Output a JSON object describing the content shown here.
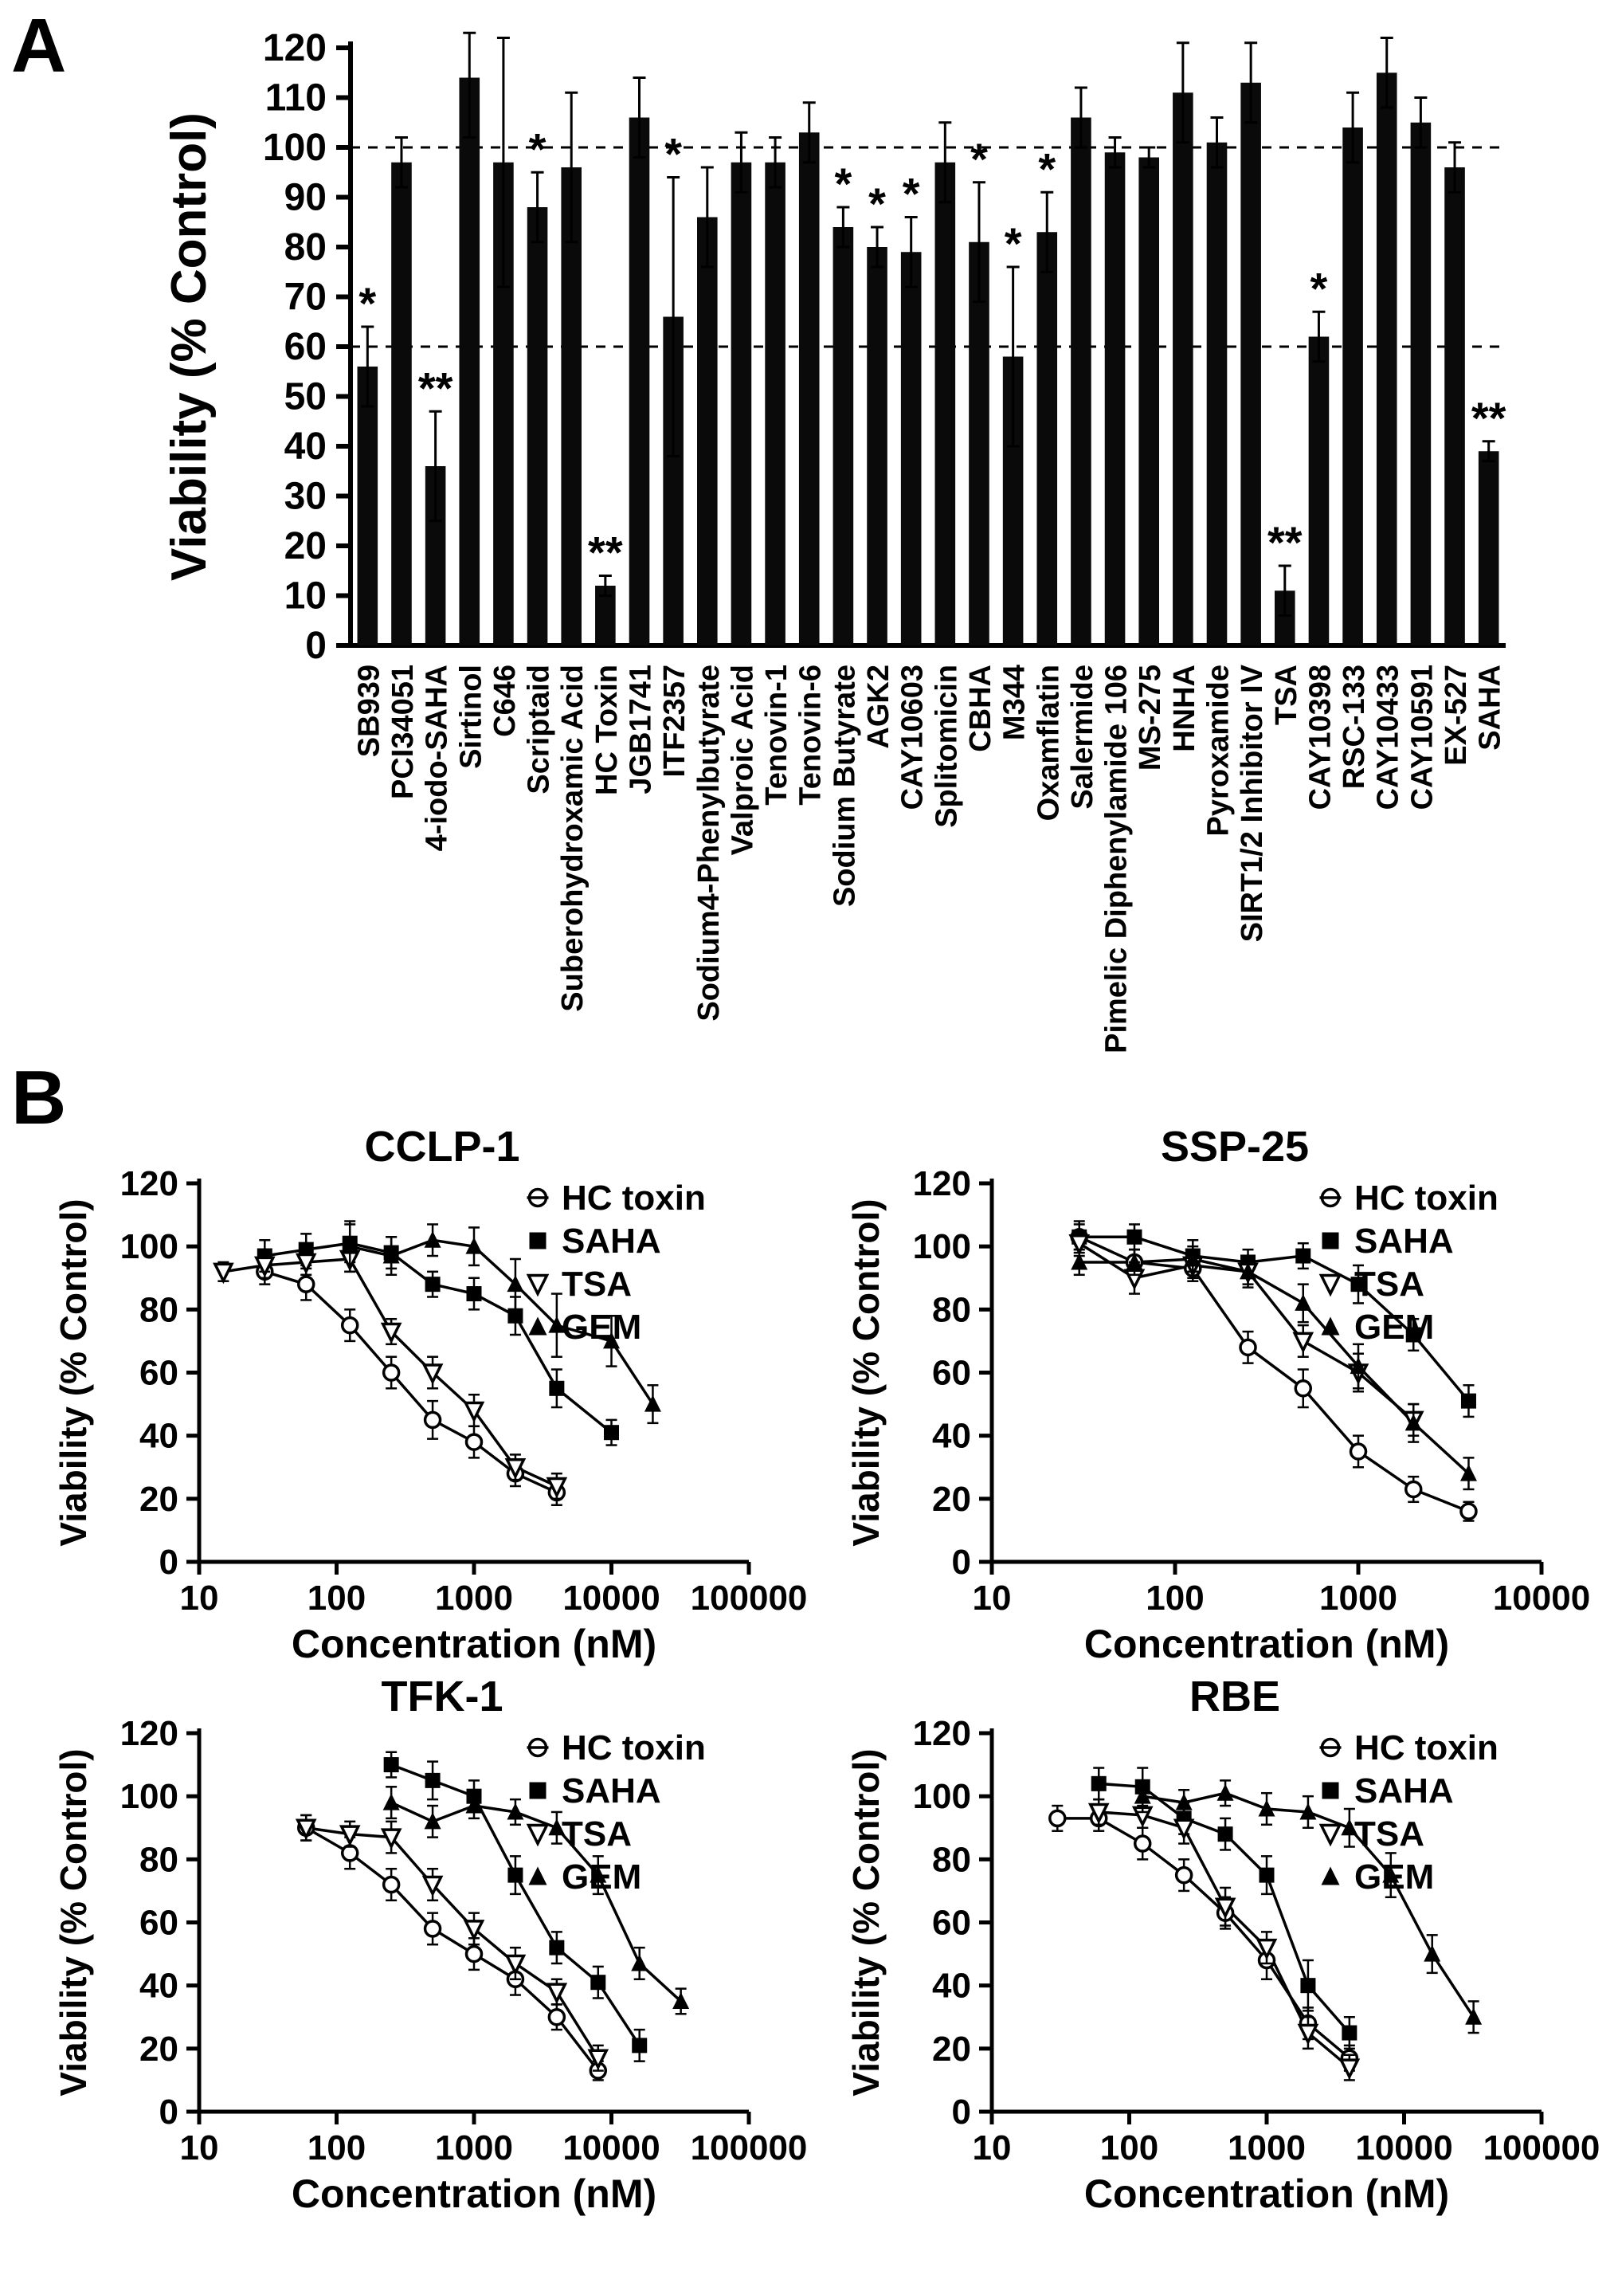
{
  "figure": {
    "panel_a": "A",
    "panel_b": "B"
  },
  "chart_data": [
    {
      "id": "panel-A",
      "type": "bar",
      "title": "",
      "xlabel": "",
      "ylabel": "Viability (% Control)",
      "ylim": [
        0,
        120
      ],
      "ytick_step": 10,
      "reference_lines": [
        100,
        60
      ],
      "bar_color": "#0a0a0a",
      "categories": [
        "SB939",
        "PCI34051",
        "4-iodo-SAHA",
        "Sirtinol",
        "C646",
        "Scriptaid",
        "Suberohydroxamic Acid",
        "HC Toxin",
        "JGB1741",
        "ITF2357",
        "Sodium4-Phenylbutyrate",
        "Valproic Acid",
        "Tenovin-1",
        "Tenovin-6",
        "Sodium Butyrate",
        "AGK2",
        "CAY10603",
        "Splitomicin",
        "CBHA",
        "M344",
        "Oxamflatin",
        "Salermide",
        "Pimelic Diphenylamide 106",
        "MS-275",
        "HNHA",
        "Pyroxamide",
        "SIRT1/2 Inhibitor IV",
        "TSA",
        "CAY10398",
        "RSC-133",
        "CAY10433",
        "CAY10591",
        "EX-527",
        "SAHA"
      ],
      "values": [
        56,
        97,
        36,
        114,
        97,
        88,
        96,
        12,
        106,
        66,
        86,
        97,
        97,
        103,
        84,
        80,
        79,
        97,
        81,
        58,
        83,
        106,
        99,
        98,
        111,
        101,
        113,
        11,
        62,
        104,
        115,
        105,
        96,
        39
      ],
      "errors": [
        8,
        5,
        11,
        12,
        25,
        7,
        15,
        2,
        8,
        28,
        10,
        6,
        5,
        6,
        4,
        4,
        7,
        8,
        12,
        18,
        8,
        6,
        3,
        2,
        10,
        5,
        8,
        5,
        5,
        7,
        7,
        5,
        5,
        2
      ],
      "significance": [
        "*",
        "",
        "**",
        "",
        "",
        "*",
        "",
        "**",
        "",
        "*",
        "",
        "",
        "",
        "",
        "*",
        "*",
        "*",
        "",
        "*",
        "*",
        "*",
        "",
        "",
        "",
        "",
        "",
        "",
        "**",
        "*",
        "",
        "",
        "",
        "",
        "**"
      ]
    },
    {
      "id": "panel-B-1",
      "type": "line",
      "title": "CCLP-1",
      "xlabel": "Concentration (nM)",
      "ylabel": "Viability (% Control)",
      "xscale": "log",
      "xlim": [
        10,
        100000
      ],
      "xticks": [
        10,
        100,
        1000,
        10000,
        100000
      ],
      "ylim": [
        0,
        120
      ],
      "yticks": [
        0,
        20,
        40,
        60,
        80,
        100,
        120
      ],
      "legend_position": "top-right",
      "series": [
        {
          "name": "HC toxin",
          "marker": "circle-open",
          "x": [
            30,
            60,
            125,
            250,
            500,
            1000,
            2000,
            4000
          ],
          "y": [
            92,
            88,
            75,
            60,
            45,
            38,
            28,
            22
          ],
          "err": [
            4,
            5,
            5,
            5,
            6,
            5,
            4,
            4
          ]
        },
        {
          "name": "SAHA",
          "marker": "square-filled",
          "x": [
            30,
            60,
            125,
            250,
            500,
            1000,
            2000,
            4000,
            10000
          ],
          "y": [
            97,
            99,
            101,
            98,
            88,
            85,
            78,
            55,
            41
          ],
          "err": [
            5,
            5,
            6,
            5,
            4,
            5,
            6,
            6,
            4
          ]
        },
        {
          "name": "TSA",
          "marker": "triangle-down-open",
          "x": [
            15,
            30,
            60,
            125,
            250,
            500,
            1000,
            2000,
            4000
          ],
          "y": [
            92,
            94,
            95,
            96,
            73,
            60,
            48,
            30,
            24
          ],
          "err": [
            3,
            4,
            4,
            4,
            4,
            5,
            5,
            4,
            4
          ]
        },
        {
          "name": "GEM",
          "marker": "triangle-up-filled",
          "x": [
            125,
            250,
            500,
            1000,
            2000,
            4000,
            10000,
            20000
          ],
          "y": [
            100,
            97,
            102,
            100,
            88,
            75,
            70,
            50
          ],
          "err": [
            8,
            6,
            5,
            6,
            8,
            10,
            8,
            6
          ]
        }
      ]
    },
    {
      "id": "panel-B-2",
      "type": "line",
      "title": "SSP-25",
      "xlabel": "Concentration (nM)",
      "ylabel": "Viability (% Control)",
      "xscale": "log",
      "xlim": [
        10,
        10000
      ],
      "xticks": [
        10,
        100,
        1000,
        10000
      ],
      "ylim": [
        0,
        120
      ],
      "yticks": [
        0,
        20,
        40,
        60,
        80,
        100,
        120
      ],
      "legend_position": "top-right",
      "series": [
        {
          "name": "HC toxin",
          "marker": "circle-open",
          "x": [
            30,
            60,
            125,
            250,
            500,
            1000,
            2000,
            4000
          ],
          "y": [
            103,
            95,
            93,
            68,
            55,
            35,
            23,
            16
          ],
          "err": [
            5,
            4,
            4,
            5,
            6,
            5,
            4,
            3
          ]
        },
        {
          "name": "SAHA",
          "marker": "square-filled",
          "x": [
            30,
            60,
            125,
            250,
            500,
            1000,
            2000,
            4000
          ],
          "y": [
            103,
            103,
            97,
            95,
            97,
            88,
            72,
            51
          ],
          "err": [
            4,
            4,
            5,
            4,
            4,
            6,
            5,
            5
          ]
        },
        {
          "name": "TSA",
          "marker": "triangle-down-open",
          "x": [
            30,
            60,
            125,
            250,
            500,
            1000,
            2000
          ],
          "y": [
            101,
            90,
            94,
            92,
            70,
            60,
            45
          ],
          "err": [
            4,
            5,
            4,
            4,
            5,
            6,
            5
          ]
        },
        {
          "name": "GEM",
          "marker": "triangle-up-filled",
          "x": [
            30,
            60,
            125,
            250,
            500,
            1000,
            2000,
            4000
          ],
          "y": [
            95,
            95,
            96,
            92,
            82,
            62,
            44,
            28
          ],
          "err": [
            4,
            4,
            4,
            5,
            6,
            7,
            6,
            5
          ]
        }
      ]
    },
    {
      "id": "panel-B-3",
      "type": "line",
      "title": "TFK-1",
      "xlabel": "Concentration (nM)",
      "ylabel": "Viability (% Control)",
      "xscale": "log",
      "xlim": [
        10,
        100000
      ],
      "xticks": [
        10,
        100,
        1000,
        10000,
        100000
      ],
      "ylim": [
        0,
        120
      ],
      "yticks": [
        0,
        20,
        40,
        60,
        80,
        100,
        120
      ],
      "legend_position": "top-right",
      "series": [
        {
          "name": "HC toxin",
          "marker": "circle-open",
          "x": [
            60,
            125,
            250,
            500,
            1000,
            2000,
            4000,
            8000
          ],
          "y": [
            90,
            82,
            72,
            58,
            50,
            42,
            30,
            13
          ],
          "err": [
            4,
            5,
            5,
            5,
            5,
            5,
            4,
            3
          ]
        },
        {
          "name": "SAHA",
          "marker": "square-filled",
          "x": [
            250,
            500,
            1000,
            2000,
            4000,
            8000,
            16000
          ],
          "y": [
            110,
            105,
            100,
            75,
            52,
            41,
            21
          ],
          "err": [
            4,
            6,
            5,
            6,
            5,
            5,
            5
          ]
        },
        {
          "name": "TSA",
          "marker": "triangle-down-open",
          "x": [
            60,
            125,
            250,
            500,
            1000,
            2000,
            4000,
            8000
          ],
          "y": [
            90,
            88,
            87,
            72,
            58,
            47,
            38,
            17
          ],
          "err": [
            4,
            4,
            5,
            5,
            5,
            5,
            4,
            4
          ]
        },
        {
          "name": "GEM",
          "marker": "triangle-up-filled",
          "x": [
            250,
            500,
            1000,
            2000,
            4000,
            8000,
            16000,
            32000
          ],
          "y": [
            98,
            92,
            97,
            95,
            90,
            75,
            47,
            35
          ],
          "err": [
            5,
            5,
            4,
            4,
            5,
            6,
            5,
            4
          ]
        }
      ]
    },
    {
      "id": "panel-B-4",
      "type": "line",
      "title": "RBE",
      "xlabel": "Concentration (nM)",
      "ylabel": "Viability (% Control)",
      "xscale": "log",
      "xlim": [
        10,
        100000
      ],
      "xticks": [
        10,
        100,
        1000,
        10000,
        100000
      ],
      "ylim": [
        0,
        120
      ],
      "yticks": [
        0,
        20,
        40,
        60,
        80,
        100,
        120
      ],
      "legend_position": "top-right",
      "series": [
        {
          "name": "HC toxin",
          "marker": "circle-open",
          "x": [
            30,
            60,
            125,
            250,
            500,
            1000,
            2000,
            4000
          ],
          "y": [
            93,
            93,
            85,
            75,
            63,
            48,
            28,
            17
          ],
          "err": [
            4,
            4,
            5,
            5,
            5,
            6,
            5,
            4
          ]
        },
        {
          "name": "SAHA",
          "marker": "square-filled",
          "x": [
            60,
            125,
            250,
            500,
            1000,
            2000,
            4000
          ],
          "y": [
            104,
            103,
            93,
            88,
            75,
            40,
            25
          ],
          "err": [
            5,
            6,
            5,
            5,
            6,
            8,
            5
          ]
        },
        {
          "name": "TSA",
          "marker": "triangle-down-open",
          "x": [
            60,
            125,
            250,
            500,
            1000,
            2000,
            4000
          ],
          "y": [
            95,
            94,
            90,
            65,
            52,
            25,
            14
          ],
          "err": [
            4,
            4,
            5,
            6,
            5,
            5,
            4
          ]
        },
        {
          "name": "GEM",
          "marker": "triangle-up-filled",
          "x": [
            125,
            250,
            500,
            1000,
            2000,
            4000,
            8000,
            16000,
            32000
          ],
          "y": [
            100,
            98,
            101,
            96,
            95,
            90,
            75,
            50,
            30
          ],
          "err": [
            5,
            4,
            4,
            5,
            5,
            6,
            7,
            6,
            5
          ]
        }
      ]
    }
  ]
}
